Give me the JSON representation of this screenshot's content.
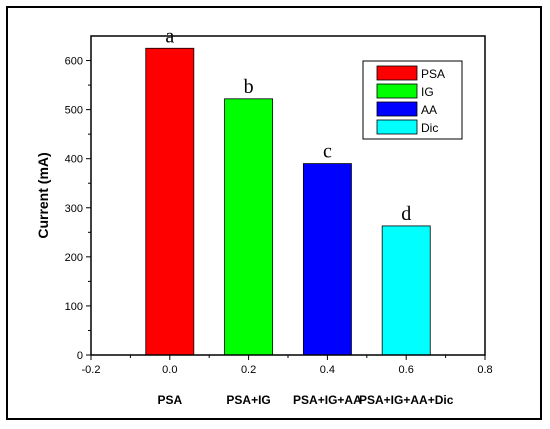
{
  "chart_data": {
    "type": "bar",
    "ylabel": "Current (mA)",
    "xlim": [
      -0.2,
      0.8
    ],
    "ylim": [
      0,
      650
    ],
    "x_ticks": [
      "-0.2",
      "0.0",
      "0.2",
      "0.4",
      "0.6",
      "0.8"
    ],
    "y_ticks": [
      "0",
      "100",
      "200",
      "300",
      "400",
      "500",
      "600"
    ],
    "categories": [
      "PSA",
      "PSA+IG",
      "PSA+IG+AA",
      "PSA+IG+AA+Dic"
    ],
    "x": [
      0.0,
      0.2,
      0.4,
      0.6
    ],
    "values": [
      625,
      522,
      390,
      263
    ],
    "data_labels": [
      "a",
      "b",
      "c",
      "d"
    ],
    "colors": [
      "#ff0000",
      "#00ff00",
      "#0000ff",
      "#00ffff"
    ],
    "legend": {
      "placement": "top-right",
      "entries": [
        "PSA",
        "IG",
        "AA",
        "Dic"
      ]
    }
  }
}
